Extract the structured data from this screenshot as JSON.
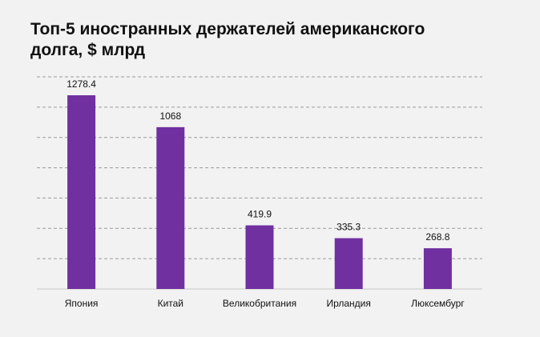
{
  "chart_data": {
    "type": "bar",
    "title": "Топ-5 иностранных  держателей американского\n долга, $ млрд",
    "categories": [
      "Япония",
      "Китай",
      "Великобритания",
      "Ирландия",
      "Люксембург"
    ],
    "values": [
      1278.4,
      1068,
      419.9,
      335.3,
      268.8
    ],
    "value_labels": [
      "1278.4",
      "1068",
      "419.9",
      "335.3",
      "268.8"
    ],
    "xlabel": "",
    "ylabel": "",
    "ylim": [
      0,
      1400
    ],
    "grid": true,
    "legend": "none",
    "colors": {
      "bar": "#7030a0",
      "background": "#f2f2f2"
    }
  }
}
